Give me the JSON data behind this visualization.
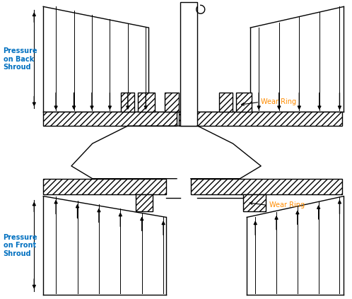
{
  "bg_color": "#ffffff",
  "line_color": "#000000",
  "pressure_back_text": "Pressure\non Back\nShroud",
  "pressure_front_text": "Pressure\non Front\nShroud",
  "wear_ring_text": "Wear Ring",
  "text_color_blue": "#0070C0",
  "text_color_orange": "#FF8C00",
  "lw": 1.0,
  "hatch": "////",
  "figw": 4.98,
  "figh": 4.23,
  "dpi": 100
}
